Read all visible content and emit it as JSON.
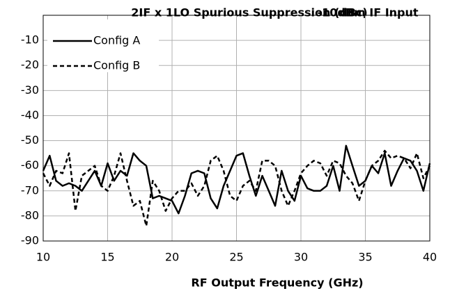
{
  "chart_data": {
    "type": "line",
    "title": "2IF x 1LO Spurious Suppression (dBc)",
    "subtitle": "-10dBm IF Input",
    "x_label": "RF Output Frequency (GHz)",
    "x": [
      10,
      10.5,
      11,
      11.5,
      12,
      12.5,
      13,
      13.5,
      14,
      14.5,
      15,
      15.5,
      16,
      16.5,
      17,
      17.5,
      18,
      18.5,
      19,
      19.5,
      20,
      20.5,
      21,
      21.5,
      22,
      22.5,
      23,
      23.5,
      24,
      24.5,
      25,
      25.5,
      26,
      26.5,
      27,
      27.5,
      28,
      28.5,
      29,
      29.5,
      30,
      30.5,
      31,
      31.5,
      32,
      32.5,
      33,
      33.5,
      34,
      34.5,
      35,
      35.5,
      36,
      36.5,
      37,
      37.5,
      38,
      38.5,
      39,
      39.5,
      40
    ],
    "series": [
      {
        "name": "Config A",
        "color": "#000000",
        "dash": "solid",
        "values": [
          -62,
          -56,
          -66,
          -68,
          -67,
          -68,
          -70,
          -66,
          -62,
          -68,
          -59,
          -66,
          -62,
          -64,
          -55,
          -58,
          -60,
          -73,
          -72,
          -73,
          -74,
          -79,
          -72,
          -63,
          -62,
          -63,
          -73,
          -77,
          -68,
          -62,
          -56,
          -55,
          -64,
          -72,
          -64,
          -70,
          -76,
          -62,
          -70,
          -74,
          -64,
          -69,
          -70,
          -70,
          -68,
          -60,
          -70,
          -52,
          -60,
          -68,
          -66,
          -60,
          -63,
          -55,
          -68,
          -62,
          -57,
          -58,
          -62,
          -70,
          -59
        ]
      },
      {
        "name": "Config B",
        "color": "#000000",
        "dash": "dashed",
        "values": [
          -63,
          -68,
          -62,
          -63,
          -55,
          -78,
          -64,
          -62,
          -60,
          -68,
          -70,
          -64,
          -55,
          -66,
          -76,
          -74,
          -84,
          -66,
          -70,
          -78,
          -73,
          -70,
          -70,
          -67,
          -72,
          -68,
          -58,
          -56,
          -62,
          -72,
          -74,
          -68,
          -66,
          -70,
          -58,
          -58,
          -60,
          -70,
          -76,
          -70,
          -63,
          -60,
          -58,
          -59,
          -64,
          -58,
          -59,
          -64,
          -67,
          -74,
          -66,
          -60,
          -58,
          -54,
          -57,
          -56,
          -57,
          -61,
          -55,
          -65,
          -60
        ]
      }
    ],
    "xlim": [
      10,
      40
    ],
    "xticks": [
      10,
      15,
      20,
      25,
      30,
      35,
      40
    ],
    "ylim": [
      -90,
      0
    ],
    "yticks": [
      -90,
      -80,
      -70,
      -60,
      -50,
      -40,
      -30,
      -20,
      -10
    ],
    "grid": true,
    "legend": "upper left"
  }
}
